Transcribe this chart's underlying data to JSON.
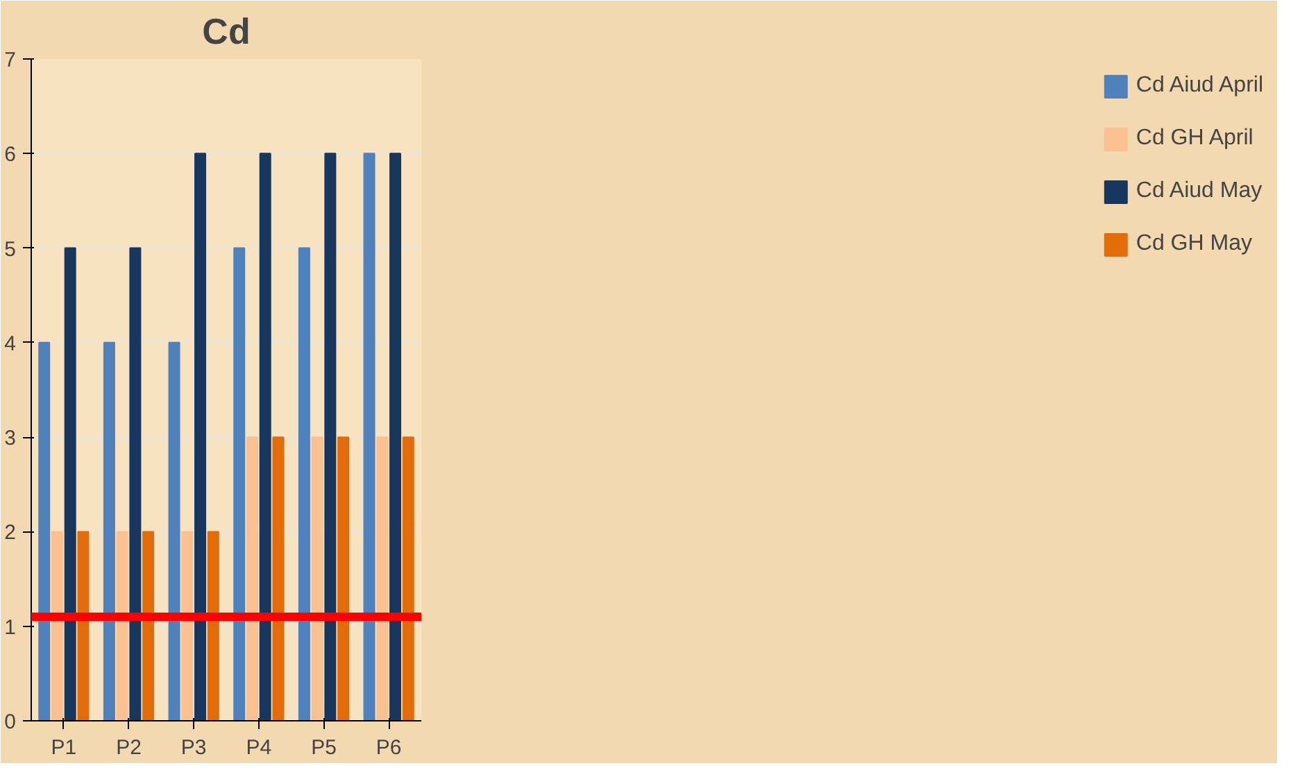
{
  "chart_data": {
    "type": "bar",
    "title": "Cd",
    "categories": [
      "P1",
      "P2",
      "P3",
      "P4",
      "P5",
      "P6"
    ],
    "series": [
      {
        "name": "Cd Aiud April",
        "color": "#4f81bd",
        "values": [
          4,
          4,
          4,
          5,
          5,
          6
        ]
      },
      {
        "name": "Cd GH April",
        "color": "#fac090",
        "values": [
          2,
          2,
          2,
          3,
          3,
          3
        ]
      },
      {
        "name": "Cd Aiud May",
        "color": "#17375e",
        "values": [
          5,
          5,
          6,
          6,
          6,
          6
        ]
      },
      {
        "name": "Cd GH May",
        "color": "#e36c09",
        "values": [
          2,
          2,
          2,
          3,
          3,
          3
        ]
      }
    ],
    "ylim": [
      0,
      7
    ],
    "yticks": [
      0,
      1,
      2,
      3,
      4,
      5,
      6,
      7
    ],
    "grid": "y",
    "legend": "right",
    "ref_lines": [
      {
        "axis": "y",
        "value": 1.1,
        "color": "#ff0000"
      }
    ]
  }
}
